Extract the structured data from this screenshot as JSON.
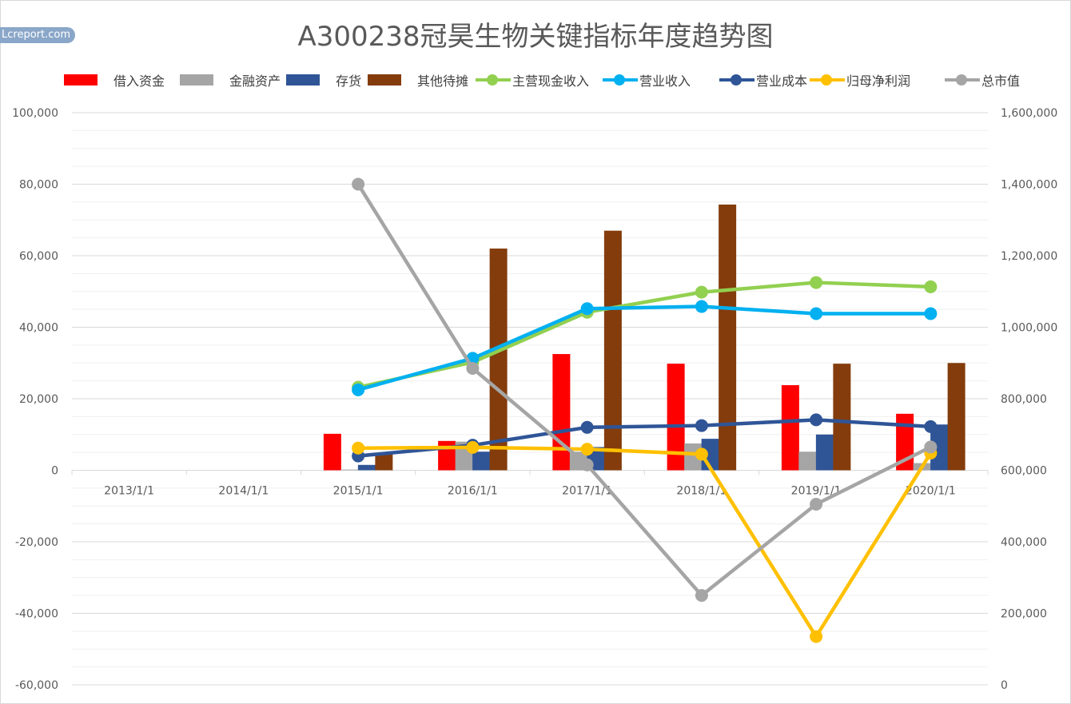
{
  "watermark": "Lcreport.com",
  "chart_data": {
    "type": "bar",
    "title": "A300238冠昊生物关键指标年度趋势图",
    "categories": [
      "2013/1/1",
      "2014/1/1",
      "2015/1/1",
      "2016/1/1",
      "2017/1/1",
      "2018/1/1",
      "2019/1/1",
      "2020/1/1"
    ],
    "y_left": {
      "ylim": [
        -60000,
        100000
      ],
      "ticks": [
        "-60,000",
        "-40,000",
        "-20,000",
        "0",
        "20,000",
        "40,000",
        "60,000",
        "80,000",
        "100,000"
      ]
    },
    "y_right": {
      "ylim": [
        0,
        1600000
      ],
      "ticks": [
        "0",
        "200,000",
        "400,000",
        "600,000",
        "800,000",
        "1,000,000",
        "1,200,000",
        "1,400,000",
        "1,600,000"
      ]
    },
    "grid": true,
    "legend_position": "top",
    "bar_series": [
      {
        "name": "借入资金",
        "color": "#ff0000",
        "values": [
          null,
          null,
          10200,
          8200,
          32500,
          29800,
          23800,
          15800
        ]
      },
      {
        "name": "金融资产",
        "color": "#a5a5a5",
        "values": [
          null,
          null,
          200,
          8000,
          5200,
          7500,
          5200,
          2000
        ]
      },
      {
        "name": "存货",
        "color": "#2f5597",
        "values": [
          null,
          null,
          1500,
          5200,
          6500,
          8800,
          10000,
          12800
        ]
      },
      {
        "name": "其他待摊",
        "color": "#843c0c",
        "values": [
          null,
          null,
          4500,
          62000,
          67000,
          74300,
          29800,
          30000
        ]
      }
    ],
    "line_series": [
      {
        "name": "主营现金收入",
        "color": "#92d050",
        "axis": "left",
        "values": [
          null,
          null,
          23200,
          30200,
          44200,
          49800,
          52500,
          51300
        ]
      },
      {
        "name": "营业收入",
        "color": "#00b0f0",
        "axis": "left",
        "values": [
          null,
          null,
          22500,
          31300,
          45200,
          45800,
          43800,
          43800
        ]
      },
      {
        "name": "营业成本",
        "color": "#2f5597",
        "axis": "left",
        "values": [
          null,
          null,
          4000,
          7000,
          12000,
          12500,
          14100,
          12200
        ]
      },
      {
        "name": "归母净利润",
        "color": "#ffc000",
        "axis": "left",
        "values": [
          null,
          null,
          6200,
          6400,
          5900,
          4500,
          -46500,
          4800
        ]
      },
      {
        "name": "总市值",
        "color": "#a5a5a5",
        "axis": "right",
        "values": [
          null,
          null,
          1400000,
          885000,
          615000,
          250000,
          505000,
          665000
        ]
      }
    ]
  }
}
